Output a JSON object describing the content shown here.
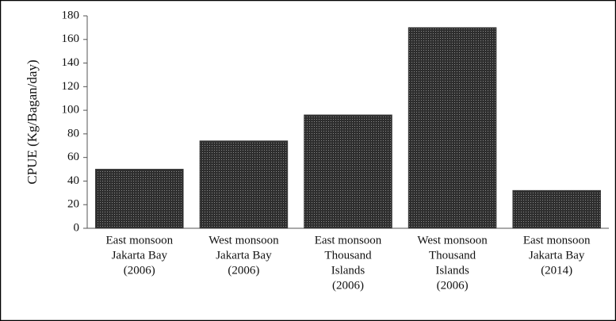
{
  "chart_data": {
    "type": "bar",
    "y_label": "CPUE (Kg/Bagan/day)",
    "categories": [
      [
        "East monsoon",
        "Jakarta Bay",
        "(2006)"
      ],
      [
        "West monsoon",
        "Jakarta Bay",
        "(2006)"
      ],
      [
        "East monsoon",
        "Thousand",
        "Islands",
        "(2006)"
      ],
      [
        "West monsoon",
        "Thousand",
        "Islands",
        "(2006)"
      ],
      [
        "East monsoon",
        "Jakarta Bay",
        "(2014)"
      ]
    ],
    "values": [
      50,
      74,
      96,
      170,
      32
    ],
    "color": "#3a3a3a",
    "ylim": [
      0,
      180
    ],
    "yticks": [
      0,
      20,
      40,
      60,
      80,
      100,
      120,
      140,
      160,
      180
    ],
    "grid": false
  }
}
